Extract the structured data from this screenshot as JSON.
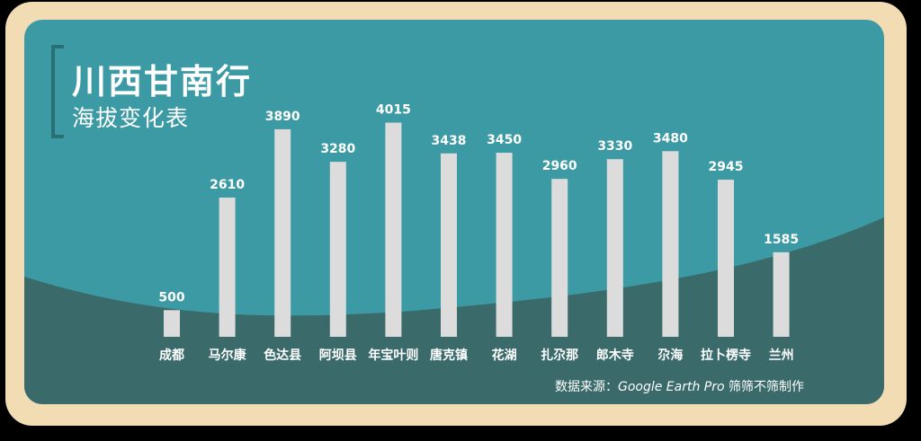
{
  "title": "川西甘南行",
  "subtitle": "海拔变化表",
  "source": {
    "prefix": "数据来源：",
    "tool": "Google Earth Pro",
    "suffix": " 筛筛不筛制作"
  },
  "colors": {
    "frame": "#f1dcb4",
    "panel_top": "#3c9aa4",
    "panel_wave": "#3a6a6a",
    "bar": "#dcdcdc",
    "text": "#ffffff"
  },
  "chart_data": {
    "type": "bar",
    "categories": [
      "成都",
      "马尔康",
      "色达县",
      "阿坝县",
      "年宝叶则",
      "唐克镇",
      "花湖",
      "扎尕那",
      "郎木寺",
      "尕海",
      "拉卜楞寺",
      "兰州"
    ],
    "values": [
      500,
      2610,
      3890,
      3280,
      4015,
      3438,
      3450,
      2960,
      3330,
      3480,
      2945,
      1585
    ],
    "data_labels": [
      "500",
      "2610",
      "3890",
      "3280",
      "4015",
      "3438",
      "3450",
      "2960",
      "3330",
      "3480",
      "2945",
      "1585"
    ],
    "ylim": [
      0,
      4000
    ],
    "grid": false,
    "legend": "none"
  }
}
